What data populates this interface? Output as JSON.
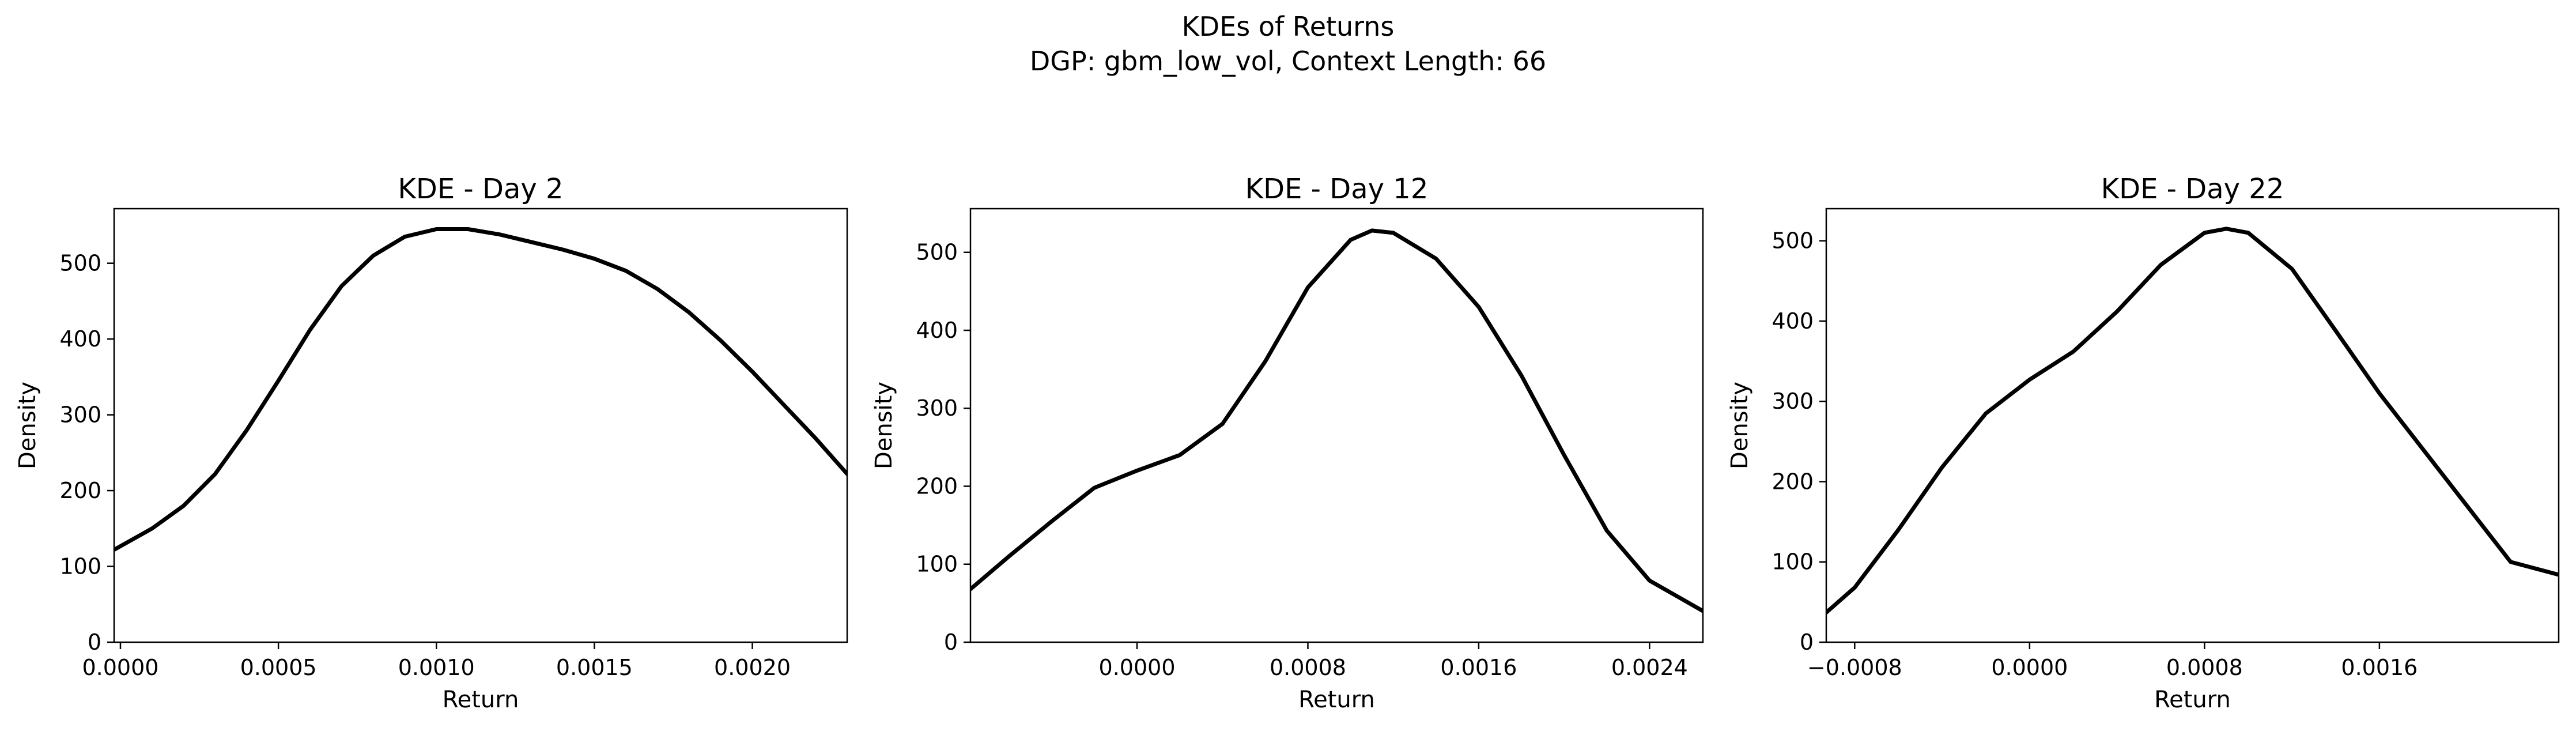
{
  "figure": {
    "suptitle_line1": "KDEs of Returns",
    "suptitle_line2": "DGP: gbm_low_vol, Context Length: 66"
  },
  "style": {
    "line_color": "#000000",
    "background": "#ffffff"
  },
  "chart_data": [
    {
      "type": "line",
      "title": "KDE - Day 2",
      "xlabel": "Return",
      "ylabel": "Density",
      "xlim": [
        -2e-05,
        0.0023
      ],
      "ylim": [
        0,
        572
      ],
      "xticks": [
        0.0,
        0.0005,
        0.001,
        0.0015,
        0.002
      ],
      "xtick_labels": [
        "0.0000",
        "0.0005",
        "0.0010",
        "0.0015",
        "0.0020"
      ],
      "yticks": [
        0,
        100,
        200,
        300,
        400,
        500
      ],
      "ytick_labels": [
        "0",
        "100",
        "200",
        "300",
        "400",
        "500"
      ],
      "series": [
        {
          "x": [
            -2e-05,
            0.0001,
            0.0002,
            0.0003,
            0.0004,
            0.0005,
            0.0006,
            0.0007,
            0.0008,
            0.0009,
            0.001,
            0.0011,
            0.0012,
            0.0013,
            0.0014,
            0.0015,
            0.0016,
            0.0017,
            0.0018,
            0.0019,
            0.002,
            0.0021,
            0.0022,
            0.0023
          ],
          "y": [
            122,
            150,
            180,
            222,
            280,
            345,
            412,
            470,
            510,
            535,
            545,
            545,
            538,
            528,
            518,
            506,
            490,
            466,
            435,
            398,
            357,
            313,
            269,
            222
          ]
        }
      ]
    },
    {
      "type": "line",
      "title": "KDE - Day 12",
      "xlabel": "Return",
      "ylabel": "Density",
      "xlim": [
        -0.00078,
        0.00265
      ],
      "ylim": [
        0,
        556
      ],
      "xticks": [
        0.0,
        0.0008,
        0.0016,
        0.0024
      ],
      "xtick_labels": [
        "0.0000",
        "0.0008",
        "0.0016",
        "0.0024"
      ],
      "yticks": [
        0,
        100,
        200,
        300,
        400,
        500
      ],
      "ytick_labels": [
        "0",
        "100",
        "200",
        "300",
        "400",
        "500"
      ],
      "series": [
        {
          "x": [
            -0.00078,
            -0.0006,
            -0.0004,
            -0.0002,
            0.0,
            0.0002,
            0.0004,
            0.0006,
            0.0008,
            0.001,
            0.0011,
            0.0012,
            0.0014,
            0.0016,
            0.0018,
            0.002,
            0.0022,
            0.0024,
            0.00265
          ],
          "y": [
            68,
            110,
            155,
            198,
            220,
            240,
            280,
            360,
            455,
            516,
            528,
            525,
            492,
            430,
            342,
            240,
            143,
            79,
            40
          ]
        }
      ]
    },
    {
      "type": "line",
      "title": "KDE - Day 22",
      "xlabel": "Return",
      "ylabel": "Density",
      "xlim": [
        -0.00093,
        0.00242
      ],
      "ylim": [
        0,
        540
      ],
      "xticks": [
        -0.0008,
        0.0,
        0.0008,
        0.0016
      ],
      "xtick_labels": [
        "−0.0008",
        "0.0000",
        "0.0008",
        "0.0016"
      ],
      "yticks": [
        0,
        100,
        200,
        300,
        400,
        500
      ],
      "ytick_labels": [
        "0",
        "100",
        "200",
        "300",
        "400",
        "500"
      ],
      "series": [
        {
          "x": [
            -0.00093,
            -0.0008,
            -0.0006,
            -0.0004,
            -0.0002,
            0.0,
            0.0002,
            0.0004,
            0.0006,
            0.0008,
            0.0009,
            0.001,
            0.0012,
            0.0014,
            0.0016,
            0.0018,
            0.002,
            0.0022,
            0.00242
          ],
          "y": [
            37,
            68,
            140,
            218,
            285,
            327,
            362,
            412,
            470,
            510,
            515,
            510,
            465,
            388,
            310,
            240,
            170,
            100,
            84
          ]
        }
      ]
    }
  ]
}
